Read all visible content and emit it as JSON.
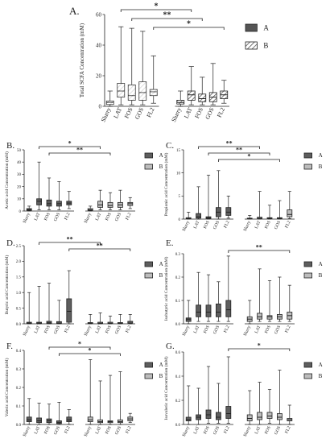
{
  "chart_data": [
    {
      "panel": "A.",
      "type": "box",
      "ylabel": "Total SCFA Concentration (mM)",
      "ylim": [
        0,
        60
      ],
      "yticks": [
        0,
        20,
        40,
        60
      ],
      "categories": [
        "Slurry",
        "LAT",
        "FOS",
        "GOS",
        "FL2",
        "Slurry",
        "LAT",
        "FOS",
        "GOS",
        "FL2"
      ],
      "groups": [
        "A",
        "A",
        "A",
        "A",
        "A",
        "B",
        "B",
        "B",
        "B",
        "B"
      ],
      "boxes": [
        {
          "min": 0,
          "q1": 1.2,
          "median": 2.5,
          "q3": 3.5,
          "max": 10
        },
        {
          "min": 1,
          "q1": 6,
          "median": 10,
          "q3": 15,
          "max": 52
        },
        {
          "min": 1,
          "q1": 4,
          "median": 7,
          "q3": 14,
          "max": 51
        },
        {
          "min": 1,
          "q1": 4,
          "median": 9,
          "q3": 16,
          "max": 49
        },
        {
          "min": 2,
          "q1": 7,
          "median": 9.5,
          "q3": 11,
          "max": 33
        },
        {
          "min": 0,
          "q1": 1.5,
          "median": 2.5,
          "q3": 4,
          "max": 10
        },
        {
          "min": 1,
          "q1": 4,
          "median": 7.5,
          "q3": 10,
          "max": 26
        },
        {
          "min": 1,
          "q1": 3,
          "median": 5,
          "q3": 8,
          "max": 19
        },
        {
          "min": 1,
          "q1": 3,
          "median": 6,
          "q3": 9,
          "max": 28
        },
        {
          "min": 2,
          "q1": 5,
          "median": 7.5,
          "q3": 10,
          "max": 17
        }
      ],
      "significance": [
        {
          "from": 1,
          "to": 6,
          "label": "*"
        },
        {
          "from": 2,
          "to": 7,
          "label": "**"
        },
        {
          "from": 4,
          "to": 9,
          "label": "*"
        }
      ],
      "legend": [
        "A",
        "B"
      ]
    },
    {
      "panel": "B.",
      "type": "box",
      "ylabel": "Acetic acid Concentration (mM)",
      "ylim": [
        0,
        50
      ],
      "yticks": [
        0,
        10,
        20,
        30,
        40,
        50
      ],
      "categories": [
        "Slurry",
        "LAT",
        "FOS",
        "GOS",
        "FL2",
        "Slurry",
        "LAT",
        "FOS",
        "GOS",
        "FL2"
      ],
      "groups": [
        "A",
        "A",
        "A",
        "A",
        "A",
        "B",
        "B",
        "B",
        "B",
        "B"
      ],
      "boxes": [
        {
          "min": 0,
          "q1": 0.5,
          "median": 1,
          "q3": 2,
          "max": 4
        },
        {
          "min": 1,
          "q1": 5,
          "median": 8,
          "q3": 10,
          "max": 40
        },
        {
          "min": 1,
          "q1": 4,
          "median": 6,
          "q3": 9,
          "max": 27
        },
        {
          "min": 1,
          "q1": 4,
          "median": 6,
          "q3": 8,
          "max": 24
        },
        {
          "min": 2,
          "q1": 5,
          "median": 6.5,
          "q3": 8,
          "max": 16
        },
        {
          "min": 0,
          "q1": 0.5,
          "median": 1,
          "q3": 2,
          "max": 4
        },
        {
          "min": 1,
          "q1": 3,
          "median": 5,
          "q3": 8,
          "max": 17
        },
        {
          "min": 1,
          "q1": 3,
          "median": 4.5,
          "q3": 7,
          "max": 15
        },
        {
          "min": 1,
          "q1": 3,
          "median": 5,
          "q3": 7,
          "max": 17
        },
        {
          "min": 2,
          "q1": 4.5,
          "median": 6,
          "q3": 7,
          "max": 11
        }
      ],
      "significance": [
        {
          "from": 1,
          "to": 6,
          "label": "*"
        },
        {
          "from": 2,
          "to": 7,
          "label": "**"
        }
      ],
      "legend": [
        "A",
        "B"
      ]
    },
    {
      "panel": "C.",
      "type": "box",
      "ylabel": "Propionic acid Concentration (mM)",
      "ylim": [
        0,
        15
      ],
      "yticks": [
        0,
        5,
        10,
        15
      ],
      "categories": [
        "Slurry",
        "LAT",
        "FOS",
        "GOS",
        "FL2",
        "Slurry",
        "LAT",
        "FOS",
        "GOS",
        "FL2"
      ],
      "groups": [
        "A",
        "A",
        "A",
        "A",
        "A",
        "B",
        "B",
        "B",
        "B",
        "B"
      ],
      "boxes": [
        {
          "min": 0,
          "q1": 0.05,
          "median": 0.1,
          "q3": 0.3,
          "max": 1.5
        },
        {
          "min": 0,
          "q1": 0.2,
          "median": 0.5,
          "q3": 1.2,
          "max": 7
        },
        {
          "min": 0,
          "q1": 0.1,
          "median": 0.3,
          "q3": 0.5,
          "max": 9.5
        },
        {
          "min": 0,
          "q1": 0.5,
          "median": 1.5,
          "q3": 2.5,
          "max": 10.5
        },
        {
          "min": 0.2,
          "q1": 0.8,
          "median": 1.5,
          "q3": 2.5,
          "max": 5
        },
        {
          "min": 0,
          "q1": 0.05,
          "median": 0.1,
          "q3": 0.2,
          "max": 0.8
        },
        {
          "min": 0,
          "q1": 0.1,
          "median": 0.2,
          "q3": 0.4,
          "max": 6
        },
        {
          "min": 0,
          "q1": 0.1,
          "median": 0.2,
          "q3": 0.3,
          "max": 3
        },
        {
          "min": 0,
          "q1": 0.1,
          "median": 0.2,
          "q3": 0.3,
          "max": 4
        },
        {
          "min": 0.1,
          "q1": 0.5,
          "median": 1,
          "q3": 2,
          "max": 6
        }
      ],
      "significance": [
        {
          "from": 1,
          "to": 6,
          "label": "**"
        },
        {
          "from": 2,
          "to": 7,
          "label": "**"
        },
        {
          "from": 3,
          "to": 8,
          "label": "*"
        }
      ],
      "legend": [
        "A",
        "B"
      ]
    },
    {
      "panel": "D.",
      "type": "box",
      "ylabel": "Butyric acid Concentration (mM)",
      "ylim": [
        0,
        2.5
      ],
      "yticks": [
        0.0,
        0.5,
        1.0,
        1.5,
        2.0,
        2.5
      ],
      "categories": [
        "Slurry",
        "LAT",
        "FOS",
        "GOS",
        "FL2",
        "Slurry",
        "LAT",
        "FOS",
        "GOS",
        "FL2"
      ],
      "groups": [
        "A",
        "A",
        "A",
        "A",
        "A",
        "B",
        "B",
        "B",
        "B",
        "B"
      ],
      "boxes": [
        {
          "min": 0,
          "q1": 0.01,
          "median": 0.02,
          "q3": 0.05,
          "max": 1.0
        },
        {
          "min": 0,
          "q1": 0.01,
          "median": 0.02,
          "q3": 0.05,
          "max": 1.2
        },
        {
          "min": 0,
          "q1": 0.01,
          "median": 0.03,
          "q3": 0.08,
          "max": 1.3
        },
        {
          "min": 0,
          "q1": 0.01,
          "median": 0.02,
          "q3": 0.07,
          "max": 0.75
        },
        {
          "min": 0,
          "q1": 0.05,
          "median": 0.4,
          "q3": 0.8,
          "max": 1.7
        },
        {
          "min": 0,
          "q1": 0.01,
          "median": 0.02,
          "q3": 0.04,
          "max": 0.3
        },
        {
          "min": 0,
          "q1": 0.01,
          "median": 0.02,
          "q3": 0.05,
          "max": 0.35
        },
        {
          "min": 0,
          "q1": 0.01,
          "median": 0.02,
          "q3": 0.05,
          "max": 0.25
        },
        {
          "min": 0,
          "q1": 0.01,
          "median": 0.02,
          "q3": 0.04,
          "max": 0.3
        },
        {
          "min": 0,
          "q1": 0.02,
          "median": 0.05,
          "q3": 0.08,
          "max": 0.3
        }
      ],
      "significance": [
        {
          "from": 1,
          "to": 6,
          "label": "**"
        },
        {
          "from": 4,
          "to": 9,
          "label": "**"
        }
      ],
      "legend": [
        "A",
        "B"
      ]
    },
    {
      "panel": "E.",
      "type": "box",
      "ylabel": "Isobutyric acid Concentration (mM)",
      "ylim": [
        0,
        0.3
      ],
      "yticks": [
        0.0,
        0.1,
        0.2,
        0.3
      ],
      "categories": [
        "Slurry",
        "LAT",
        "FOS",
        "GOS",
        "FL2",
        "Slurry",
        "LAT",
        "FOS",
        "GOS",
        "FL2"
      ],
      "groups": [
        "A",
        "A",
        "A",
        "A",
        "A",
        "B",
        "B",
        "B",
        "B",
        "B"
      ],
      "boxes": [
        {
          "min": 0,
          "q1": 0.01,
          "median": 0.02,
          "q3": 0.025,
          "max": 0.1
        },
        {
          "min": 0.01,
          "q1": 0.03,
          "median": 0.05,
          "q3": 0.08,
          "max": 0.22
        },
        {
          "min": 0.01,
          "q1": 0.03,
          "median": 0.05,
          "q3": 0.08,
          "max": 0.21
        },
        {
          "min": 0.01,
          "q1": 0.03,
          "median": 0.05,
          "q3": 0.085,
          "max": 0.18
        },
        {
          "min": 0.01,
          "q1": 0.03,
          "median": 0.06,
          "q3": 0.1,
          "max": 0.29
        },
        {
          "min": 0,
          "q1": 0.01,
          "median": 0.02,
          "q3": 0.03,
          "max": 0.1
        },
        {
          "min": 0.01,
          "q1": 0.02,
          "median": 0.03,
          "q3": 0.045,
          "max": 0.235
        },
        {
          "min": 0.01,
          "q1": 0.02,
          "median": 0.03,
          "q3": 0.035,
          "max": 0.185
        },
        {
          "min": 0.01,
          "q1": 0.02,
          "median": 0.03,
          "q3": 0.04,
          "max": 0.2
        },
        {
          "min": 0.01,
          "q1": 0.02,
          "median": 0.035,
          "q3": 0.05,
          "max": 0.165
        }
      ],
      "significance": [
        {
          "from": 4,
          "to": 9,
          "label": "**"
        }
      ],
      "legend": [
        "A",
        "B"
      ]
    },
    {
      "panel": "F.",
      "type": "box",
      "ylabel": "Valeric acid Concentration (mM)",
      "ylim": [
        0,
        0.4
      ],
      "yticks": [
        0.0,
        0.1,
        0.2,
        0.3,
        0.4
      ],
      "categories": [
        "Slurry",
        "LAT",
        "FOS",
        "GOS",
        "FL2",
        "Slurry",
        "LAT",
        "FOS",
        "GOS",
        "FL2"
      ],
      "groups": [
        "A",
        "A",
        "A",
        "A",
        "A",
        "B",
        "B",
        "B",
        "B",
        "B"
      ],
      "boxes": [
        {
          "min": 0,
          "q1": 0.015,
          "median": 0.025,
          "q3": 0.04,
          "max": 0.14
        },
        {
          "min": 0,
          "q1": 0.01,
          "median": 0.02,
          "q3": 0.035,
          "max": 0.115
        },
        {
          "min": 0,
          "q1": 0.01,
          "median": 0.02,
          "q3": 0.03,
          "max": 0.11
        },
        {
          "min": 0,
          "q1": 0.005,
          "median": 0.01,
          "q3": 0.02,
          "max": 0.12
        },
        {
          "min": 0,
          "q1": 0.015,
          "median": 0.025,
          "q3": 0.04,
          "max": 0.08
        },
        {
          "min": 0,
          "q1": 0.015,
          "median": 0.025,
          "q3": 0.04,
          "max": 0.35
        },
        {
          "min": 0,
          "q1": 0.01,
          "median": 0.015,
          "q3": 0.025,
          "max": 0.235
        },
        {
          "min": 0,
          "q1": 0.01,
          "median": 0.015,
          "q3": 0.02,
          "max": 0.265
        },
        {
          "min": 0,
          "q1": 0.01,
          "median": 0.015,
          "q3": 0.025,
          "max": 0.285
        },
        {
          "min": 0.01,
          "q1": 0.02,
          "median": 0.03,
          "q3": 0.04,
          "max": 0.06
        }
      ],
      "significance": [
        {
          "from": 2,
          "to": 7,
          "label": "*"
        },
        {
          "from": 3,
          "to": 8,
          "label": "*"
        }
      ],
      "legend": [
        "A",
        "B"
      ]
    },
    {
      "panel": "G.",
      "type": "box",
      "ylabel": "Isovaleric acid Concentration (mM)",
      "ylim": [
        0,
        0.6
      ],
      "yticks": [
        0.0,
        0.2,
        0.4,
        0.6
      ],
      "categories": [
        "Slurry",
        "LAT",
        "FOS",
        "GOS",
        "FL2",
        "Slurry",
        "LAT",
        "FOS",
        "GOS",
        "FL2"
      ],
      "groups": [
        "A",
        "A",
        "A",
        "A",
        "A",
        "B",
        "B",
        "B",
        "B",
        "B"
      ],
      "boxes": [
        {
          "min": 0,
          "q1": 0.03,
          "median": 0.04,
          "q3": 0.06,
          "max": 0.32
        },
        {
          "min": 0,
          "q1": 0.04,
          "median": 0.06,
          "q3": 0.08,
          "max": 0.3
        },
        {
          "min": 0.01,
          "q1": 0.05,
          "median": 0.08,
          "q3": 0.12,
          "max": 0.48
        },
        {
          "min": 0.01,
          "q1": 0.04,
          "median": 0.06,
          "q3": 0.1,
          "max": 0.34
        },
        {
          "min": 0.01,
          "q1": 0.05,
          "median": 0.09,
          "q3": 0.15,
          "max": 0.56
        },
        {
          "min": 0,
          "q1": 0.03,
          "median": 0.05,
          "q3": 0.08,
          "max": 0.28
        },
        {
          "min": 0,
          "q1": 0.04,
          "median": 0.06,
          "q3": 0.1,
          "max": 0.35
        },
        {
          "min": 0.01,
          "q1": 0.05,
          "median": 0.07,
          "q3": 0.1,
          "max": 0.29
        },
        {
          "min": 0,
          "q1": 0.04,
          "median": 0.06,
          "q3": 0.09,
          "max": 0.45
        },
        {
          "min": 0,
          "q1": 0.03,
          "median": 0.04,
          "q3": 0.05,
          "max": 0.16
        }
      ],
      "significance": [
        {
          "from": 4,
          "to": 9,
          "label": "*"
        }
      ],
      "legend": [
        "A",
        "B"
      ]
    }
  ]
}
